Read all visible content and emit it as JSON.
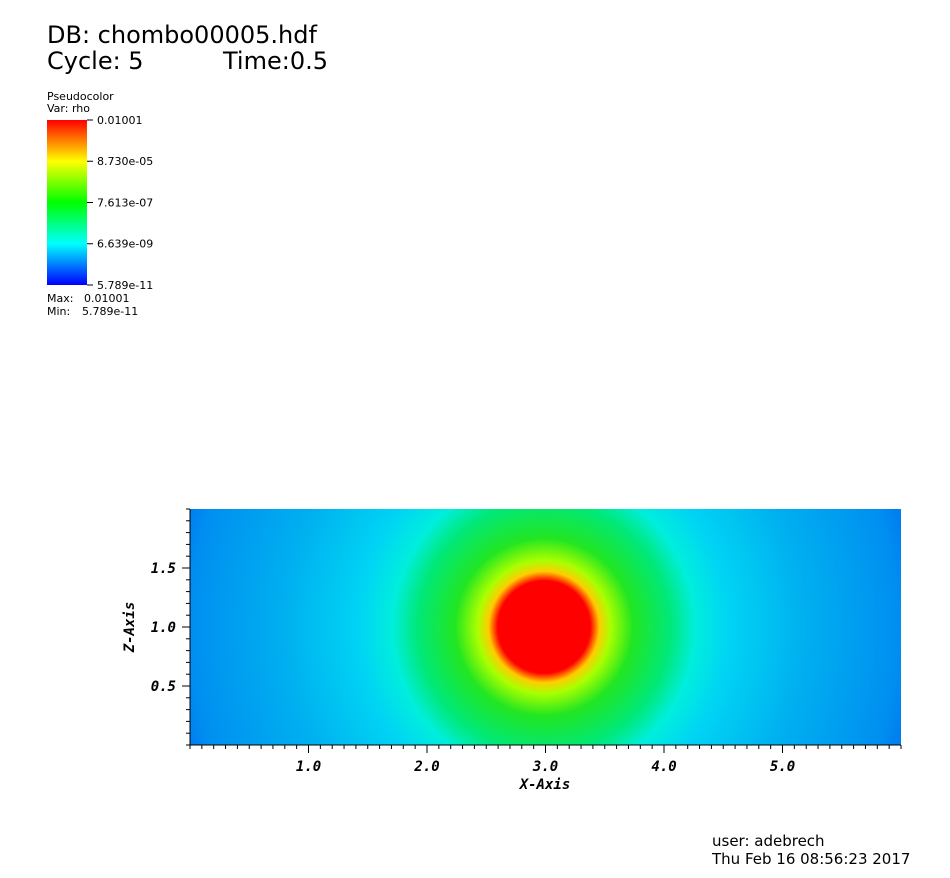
{
  "chart_data": {
    "type": "pseudocolor",
    "title": "DB: chombo00005.hdf",
    "cycle": "Cycle: 5",
    "time": "Time:0.5",
    "plot_name": "Pseudocolor",
    "variable": "Var: rho",
    "colorbar": {
      "scale": "log",
      "range": [
        5.789e-11,
        0.01001
      ],
      "ticks": [
        0.01001,
        {
          "value": 8.73e-05,
          "label": "8.730e-05"
        },
        {
          "value": 7.613e-07,
          "label": "7.613e-07"
        },
        {
          "value": 6.639e-09,
          "label": "6.639e-09"
        },
        5.789e-11
      ],
      "colors": [
        "#0000ff",
        "#00ffff",
        "#00ff00",
        "#ffff00",
        "#ff0000"
      ]
    },
    "max_label": "Max:",
    "max": 0.01001,
    "min_label": "Min:",
    "min": 5.789e-11,
    "x_label": "X-Axis",
    "y_label": "Z-Axis",
    "xlim": [
      0,
      6
    ],
    "ylim": [
      0,
      2
    ],
    "xticks": [
      {
        "value": 1,
        "label": "1.0"
      },
      {
        "value": 2,
        "label": "2.0"
      },
      {
        "value": 3,
        "label": "3.0"
      },
      {
        "value": 4,
        "label": "4.0"
      },
      {
        "value": 5,
        "label": "5.0"
      }
    ],
    "yticks": [
      {
        "value": 0.5,
        "label": "0.5"
      },
      {
        "value": 1,
        "label": "1.0"
      },
      {
        "value": 1.5,
        "label": "1.5"
      }
    ],
    "user": "user: adebrech",
    "timestamp": "Thu Feb 16 08:56:23 2017"
  }
}
